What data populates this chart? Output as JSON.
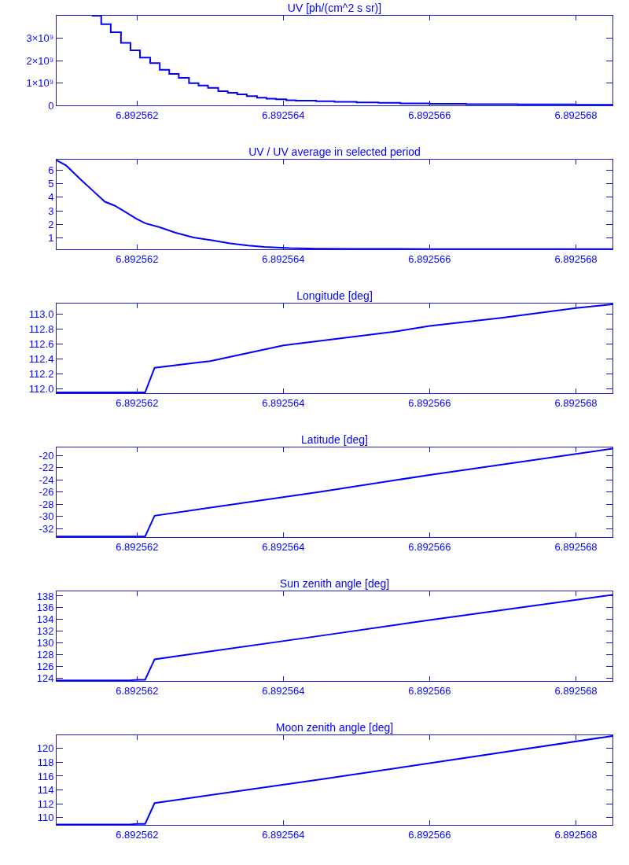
{
  "chart_data": [
    {
      "type": "step",
      "title": "UV [ph/(cm^2 s sr)]",
      "color": "#0000ff",
      "x": [
        6.89256138,
        6.89256151,
        6.89256164,
        6.89256178,
        6.89256191,
        6.89256204,
        6.89256218,
        6.89256231,
        6.89256244,
        6.89256257,
        6.89256271,
        6.89256284,
        6.89256297,
        6.89256311,
        6.89256324,
        6.89256337,
        6.8925635,
        6.89256364,
        6.89256377,
        6.8925639,
        6.89256404,
        6.89256417,
        6.89256445,
        6.8925647,
        6.892565,
        6.8925653,
        6.8925656,
        6.892566,
        6.8925665,
        6.8925672,
        6.892568,
        6.8925685
      ],
      "values": [
        4000000000.0,
        3620000000.0,
        3260000000.0,
        2790000000.0,
        2460000000.0,
        2130000000.0,
        1890000000.0,
        1590000000.0,
        1400000000.0,
        1230000000.0,
        990000000.0,
        890000000.0,
        780000000.0,
        630000000.0,
        560000000.0,
        490000000.0,
        410000000.0,
        340000000.0,
        300000000.0,
        270000000.0,
        230000000.0,
        210000000.0,
        180000000.0,
        160000000.0,
        130000000.0,
        110000000.0,
        90000000.0,
        70000000.0,
        50000000.0,
        40000000.0,
        30000000.0,
        30000000.0
      ],
      "xlim": [
        6.8925609,
        6.8925685
      ],
      "xticks": [
        6.892562,
        6.892564,
        6.892566,
        6.892568
      ],
      "ylim": [
        0,
        4000000000.0
      ],
      "yticks": [
        0,
        {
          "value": 1000000000.0,
          "label": "1×10⁹"
        },
        {
          "value": 2000000000.0,
          "label": "2×10⁹"
        },
        {
          "value": 3000000000.0,
          "label": "3×10⁹"
        }
      ]
    },
    {
      "type": "line",
      "title": "UV / UV average in selected period",
      "color": "#0000ff",
      "x": [
        6.8925609,
        6.89256103,
        6.89256124,
        6.89256142,
        6.89256156,
        6.8925617,
        6.89256185,
        6.89256199,
        6.89256211,
        6.89256231,
        6.89256252,
        6.89256277,
        6.89256302,
        6.89256327,
        6.89256352,
        6.89256374,
        6.89256409,
        6.89256445,
        6.89256498,
        6.892566,
        6.89256712,
        6.8925685
      ],
      "values": [
        6.72,
        6.34,
        5.25,
        4.36,
        3.67,
        3.37,
        2.88,
        2.42,
        2.09,
        1.79,
        1.4,
        1.04,
        0.84,
        0.6,
        0.45,
        0.35,
        0.25,
        0.22,
        0.2,
        0.19,
        0.18,
        0.18
      ],
      "xlim": [
        6.8925609,
        6.8925685
      ],
      "xticks": [
        6.892562,
        6.892564,
        6.892566,
        6.892568
      ],
      "ylim": [
        0.17,
        6.77
      ],
      "yticks": [
        1,
        2,
        3,
        4,
        5,
        6
      ]
    },
    {
      "type": "line",
      "title": "Longitude [deg]",
      "color": "#0000ff",
      "x": [
        6.8925609,
        6.89256211,
        6.89256224,
        6.892563,
        6.892564,
        6.8925645,
        6.8925655,
        6.892566,
        6.892567,
        6.892568,
        6.8925685
      ],
      "values": [
        111.95,
        111.95,
        112.28,
        112.37,
        112.58,
        112.64,
        112.76,
        112.84,
        112.95,
        113.08,
        113.13
      ],
      "xlim": [
        6.8925609,
        6.8925685
      ],
      "xticks": [
        6.892562,
        6.892564,
        6.892566,
        6.892568
      ],
      "ylim": [
        111.94,
        113.14
      ],
      "yticks": [
        {
          "value": 112,
          "label": "112.0"
        },
        112.2,
        112.4,
        112.6,
        112.8,
        {
          "value": 113,
          "label": "113.0"
        }
      ]
    },
    {
      "type": "line",
      "title": "Latitude [deg]",
      "color": "#0000ff",
      "x": [
        6.8925609,
        6.89256211,
        6.89256224,
        6.8925645,
        6.892566,
        6.8925685
      ],
      "values": [
        -33.3,
        -33.3,
        -29.9,
        -26.0,
        -23.2,
        -18.9
      ],
      "xlim": [
        6.8925609,
        6.8925685
      ],
      "xticks": [
        6.892562,
        6.892564,
        6.892566,
        6.892568
      ],
      "ylim": [
        -33.4,
        -18.7
      ],
      "yticks": [
        -32,
        -30,
        -28,
        -26,
        -24,
        -22,
        -20
      ]
    },
    {
      "type": "line",
      "title": "Sun zenith angle [deg]",
      "color": "#0000ff",
      "x": [
        6.8925609,
        6.8925619,
        6.892562,
        6.89256211,
        6.89256224,
        6.8925645,
        6.892566,
        6.8925685
      ],
      "values": [
        123.6,
        123.6,
        123.7,
        123.7,
        127.2,
        131.2,
        133.9,
        138.2
      ],
      "xlim": [
        6.8925609,
        6.8925685
      ],
      "xticks": [
        6.892562,
        6.892564,
        6.892566,
        6.892568
      ],
      "ylim": [
        123.5,
        138.8
      ],
      "yticks": [
        124,
        126,
        128,
        130,
        132,
        134,
        136,
        138
      ]
    },
    {
      "type": "line",
      "title": "Moon zenith angle [deg]",
      "color": "#0000ff",
      "x": [
        6.8925609,
        6.8925619,
        6.892562,
        6.89256211,
        6.89256224,
        6.8925645,
        6.8925685
      ],
      "values": [
        109.0,
        109.0,
        109.1,
        109.1,
        112.1,
        115.5,
        121.8
      ],
      "xlim": [
        6.8925609,
        6.8925685
      ],
      "xticks": [
        6.892562,
        6.892564,
        6.892566,
        6.892568
      ],
      "ylim": [
        108.95,
        121.9
      ],
      "yticks": [
        110,
        112,
        114,
        116,
        118,
        120
      ]
    }
  ]
}
